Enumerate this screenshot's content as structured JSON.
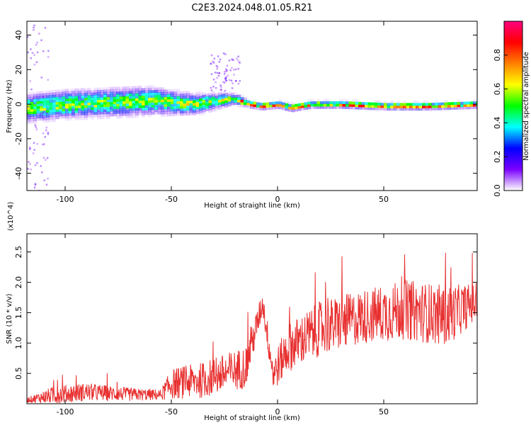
{
  "figure": {
    "title": "C2E3.2024.048.01.05.R21"
  },
  "chart_data": [
    {
      "type": "heatmap",
      "xlabel": "Height of straight line (km)",
      "ylabel": "Frequency (Hz)",
      "xlim": [
        -118,
        94
      ],
      "ylim": [
        -50,
        48
      ],
      "xticks": [
        -100,
        -50,
        0,
        50
      ],
      "yticks": [
        -40,
        -20,
        0,
        20,
        40
      ],
      "colorbar": {
        "label": "Normalized spectral amplitude",
        "range": [
          0,
          1
        ],
        "ticks": [
          0.0,
          0.2,
          0.4,
          0.6,
          0.8
        ],
        "colormap": [
          "#ffffff",
          "#7a00ff",
          "#0000ff",
          "#00ffff",
          "#00ff00",
          "#ffff00",
          "#ff8000",
          "#ff0000",
          "#ff0080"
        ]
      },
      "ridge_center_hz": [
        [
          -118,
          -2
        ],
        [
          -100,
          0
        ],
        [
          -80,
          1
        ],
        [
          -60,
          2
        ],
        [
          -40,
          0
        ],
        [
          -28,
          2
        ],
        [
          -22,
          3
        ],
        [
          -18,
          2
        ],
        [
          -13,
          0
        ],
        [
          -8,
          -1
        ],
        [
          0,
          0
        ],
        [
          6,
          -2
        ],
        [
          15,
          0
        ],
        [
          30,
          0
        ],
        [
          50,
          -1
        ],
        [
          70,
          -1
        ],
        [
          94,
          0
        ]
      ],
      "ridge_width_hz": [
        [
          -118,
          8
        ],
        [
          -60,
          8
        ],
        [
          -40,
          6
        ],
        [
          -25,
          4
        ],
        [
          -15,
          2
        ],
        [
          0,
          2
        ],
        [
          94,
          2
        ]
      ],
      "scatter_regions": [
        {
          "x": [
            -118,
            -108
          ],
          "y": [
            -50,
            48
          ]
        },
        {
          "x": [
            -32,
            -18
          ],
          "y": [
            8,
            30
          ]
        }
      ]
    },
    {
      "type": "line",
      "xlabel": "Height of straight line (km)",
      "ylabel": "SNR (10 * v/v)",
      "y_multiplier": "(x10^4)",
      "xlim": [
        -118,
        94
      ],
      "ylim": [
        0,
        2.8
      ],
      "xticks": [
        -100,
        -50,
        0,
        50
      ],
      "yticks": [
        0.5,
        1.0,
        1.5,
        2.0,
        2.5
      ],
      "color": "#e83030",
      "envelope": [
        {
          "x": -118,
          "base": 0.05,
          "amp": 0.08
        },
        {
          "x": -105,
          "base": 0.1,
          "amp": 0.3
        },
        {
          "x": -90,
          "base": 0.15,
          "amp": 0.3
        },
        {
          "x": -70,
          "base": 0.12,
          "amp": 0.22
        },
        {
          "x": -55,
          "base": 0.12,
          "amp": 0.18
        },
        {
          "x": -50,
          "base": 0.25,
          "amp": 0.5
        },
        {
          "x": -35,
          "base": 0.3,
          "amp": 0.6
        },
        {
          "x": -15,
          "base": 0.5,
          "amp": 0.7
        },
        {
          "x": -7,
          "base": 1.6,
          "amp": 0.4
        },
        {
          "x": -2,
          "base": 0.4,
          "amp": 0.6
        },
        {
          "x": 5,
          "base": 0.8,
          "amp": 0.8
        },
        {
          "x": 20,
          "base": 1.1,
          "amp": 0.9
        },
        {
          "x": 40,
          "base": 1.3,
          "amp": 0.9
        },
        {
          "x": 60,
          "base": 1.4,
          "amp": 1.0
        },
        {
          "x": 80,
          "base": 1.3,
          "amp": 1.0
        },
        {
          "x": 94,
          "base": 1.6,
          "amp": 0.6
        }
      ]
    }
  ]
}
